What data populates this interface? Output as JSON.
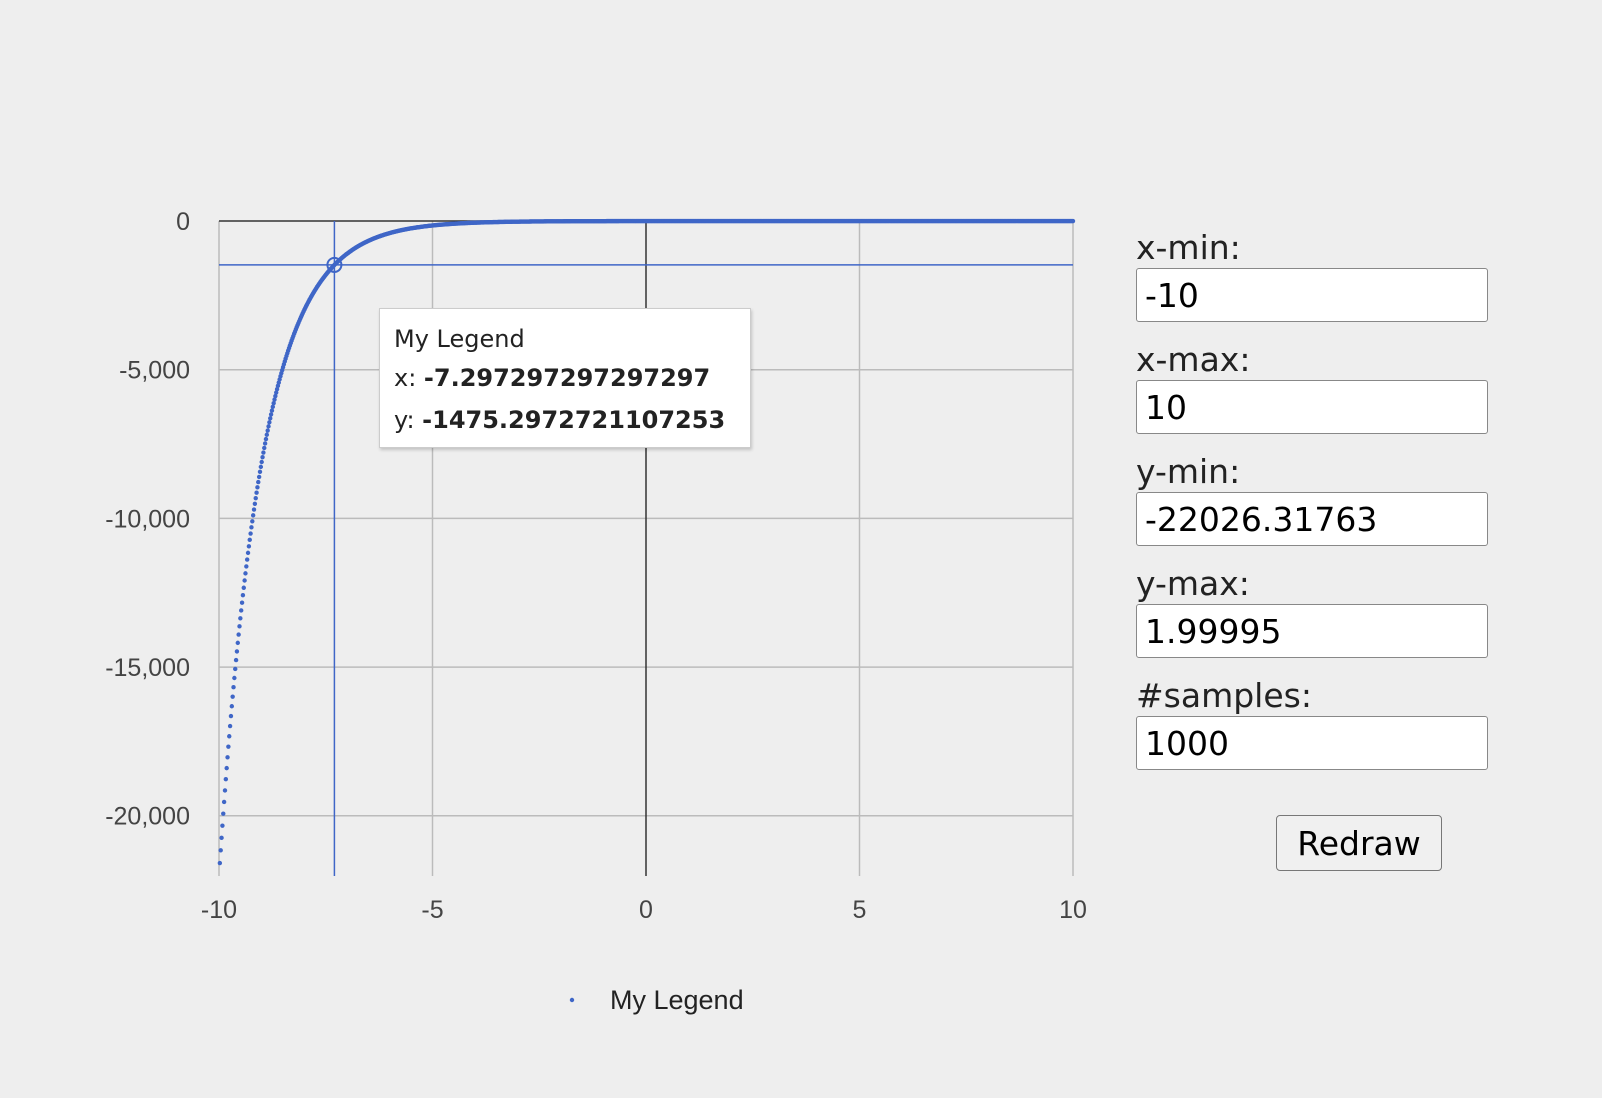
{
  "chart_data": {
    "type": "scatter",
    "function": "-exp(-x)",
    "series": [
      {
        "name": "My Legend",
        "color": "#3f66c7"
      }
    ],
    "xlim": [
      -10,
      10
    ],
    "ylim": [
      -22026.31763,
      1.99995
    ],
    "samples": 1000,
    "x_ticks": [
      -10,
      -5,
      0,
      5,
      10
    ],
    "x_tick_labels": [
      "-10",
      "-5",
      "0",
      "5",
      "10"
    ],
    "y_ticks": [
      0,
      -5000,
      -10000,
      -15000,
      -20000
    ],
    "y_tick_labels": [
      "0",
      "-5,000",
      "-10,000",
      "-15,000",
      "-20,000"
    ],
    "grid": true,
    "legend_position": "bottom",
    "crosshair": {
      "x": -7.297297297297297,
      "y": -1475.2972721107253
    }
  },
  "tooltip": {
    "title": "My Legend",
    "x_label": "x: ",
    "x_value": "-7.297297297297297",
    "y_label": "y: ",
    "y_value": "-1475.2972721107253"
  },
  "legend": {
    "label": "My Legend"
  },
  "controls": {
    "x_min": {
      "label": "x-min:",
      "value": "-10"
    },
    "x_max": {
      "label": "x-max:",
      "value": "10"
    },
    "y_min": {
      "label": "y-min:",
      "value": "-22026.31763"
    },
    "y_max": {
      "label": "y-max:",
      "value": "1.99995"
    },
    "samples": {
      "label": "#samples:",
      "value": "1000"
    },
    "redraw_label": "Redraw"
  },
  "colors": {
    "series": "#3f66c7",
    "grid": "#bbbbbb",
    "axis": "#333333",
    "background": "#eeeeee"
  }
}
